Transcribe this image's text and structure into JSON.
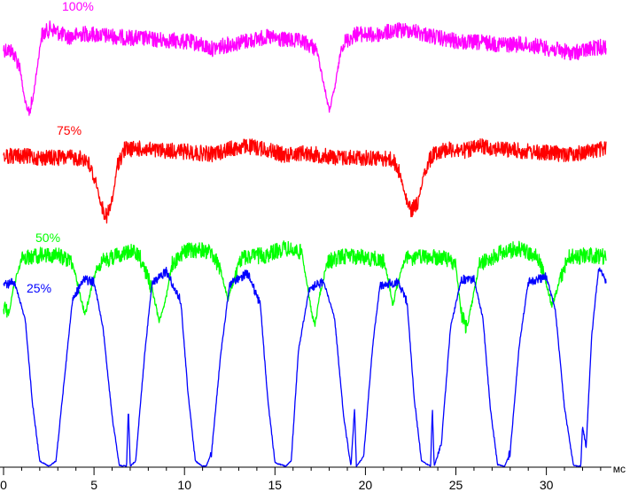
{
  "chart_data": {
    "type": "line",
    "title": "",
    "xlabel": "",
    "ylabel": "",
    "x_unit": "мс",
    "xlim": [
      0,
      33.3
    ],
    "xticks": [
      0,
      5,
      10,
      15,
      20,
      25,
      30
    ],
    "grid": false,
    "legend": "none",
    "series": [
      {
        "name": "100%",
        "color": "#ff00ff",
        "baseline": 48,
        "noise_band": "medium",
        "points": [
          [
            0.0,
            55
          ],
          [
            0.5,
            58
          ],
          [
            0.9,
            75
          ],
          [
            1.1,
            105
          ],
          [
            1.35,
            128
          ],
          [
            1.6,
            115
          ],
          [
            1.9,
            70
          ],
          [
            2.1,
            40
          ],
          [
            2.6,
            32
          ],
          [
            3.5,
            42
          ],
          [
            4.5,
            38
          ],
          [
            5.5,
            40
          ],
          [
            6.5,
            42
          ],
          [
            7.5,
            43
          ],
          [
            8.5,
            45
          ],
          [
            9.5,
            46
          ],
          [
            10.5,
            48
          ],
          [
            11.5,
            55
          ],
          [
            12.5,
            50
          ],
          [
            13.5,
            46
          ],
          [
            14.5,
            42
          ],
          [
            15.5,
            45
          ],
          [
            16.5,
            47
          ],
          [
            17.3,
            55
          ],
          [
            17.7,
            95
          ],
          [
            18.0,
            125
          ],
          [
            18.3,
            100
          ],
          [
            18.7,
            50
          ],
          [
            19.5,
            38
          ],
          [
            20.5,
            40
          ],
          [
            21.5,
            35
          ],
          [
            22.5,
            34
          ],
          [
            23.5,
            40
          ],
          [
            24.5,
            45
          ],
          [
            25.5,
            48
          ],
          [
            26.5,
            48
          ],
          [
            27.5,
            50
          ],
          [
            28.5,
            50
          ],
          [
            29.5,
            52
          ],
          [
            30.5,
            56
          ],
          [
            31.5,
            60
          ],
          [
            32.5,
            55
          ],
          [
            33.3,
            52
          ]
        ]
      },
      {
        "name": "75%",
        "color": "#ff0000",
        "baseline": 175,
        "noise_band": "medium",
        "points": [
          [
            0.0,
            176
          ],
          [
            1.0,
            176
          ],
          [
            2.0,
            178
          ],
          [
            3.0,
            178
          ],
          [
            4.0,
            178
          ],
          [
            4.6,
            180
          ],
          [
            5.1,
            205
          ],
          [
            5.4,
            232
          ],
          [
            5.7,
            245
          ],
          [
            6.0,
            228
          ],
          [
            6.3,
            185
          ],
          [
            6.7,
            168
          ],
          [
            7.5,
            168
          ],
          [
            8.5,
            170
          ],
          [
            9.5,
            170
          ],
          [
            10.5,
            172
          ],
          [
            11.5,
            174
          ],
          [
            12.5,
            168
          ],
          [
            13.5,
            165
          ],
          [
            14.5,
            168
          ],
          [
            15.5,
            175
          ],
          [
            16.5,
            172
          ],
          [
            17.5,
            175
          ],
          [
            18.5,
            178
          ],
          [
            19.5,
            178
          ],
          [
            20.5,
            178
          ],
          [
            21.5,
            180
          ],
          [
            21.9,
            195
          ],
          [
            22.2,
            222
          ],
          [
            22.5,
            238
          ],
          [
            22.9,
            228
          ],
          [
            23.3,
            190
          ],
          [
            23.8,
            172
          ],
          [
            24.5,
            168
          ],
          [
            25.5,
            170
          ],
          [
            26.5,
            165
          ],
          [
            27.5,
            168
          ],
          [
            28.5,
            170
          ],
          [
            29.5,
            172
          ],
          [
            30.5,
            173
          ],
          [
            31.5,
            174
          ],
          [
            32.5,
            170
          ],
          [
            33.3,
            168
          ]
        ]
      },
      {
        "name": "50%",
        "color": "#00ff00",
        "baseline": 290,
        "noise_band": "medium",
        "points": [
          [
            0.0,
            345
          ],
          [
            0.3,
            352
          ],
          [
            0.6,
            320
          ],
          [
            1.0,
            292
          ],
          [
            2.0,
            288
          ],
          [
            3.0,
            288
          ],
          [
            3.8,
            295
          ],
          [
            4.2,
            330
          ],
          [
            4.5,
            355
          ],
          [
            4.8,
            330
          ],
          [
            5.2,
            298
          ],
          [
            6.0,
            290
          ],
          [
            7.0,
            283
          ],
          [
            7.5,
            288
          ],
          [
            8.2,
            325
          ],
          [
            8.6,
            362
          ],
          [
            9.0,
            335
          ],
          [
            9.3,
            298
          ],
          [
            10.0,
            283
          ],
          [
            11.0,
            282
          ],
          [
            11.5,
            285
          ],
          [
            12.0,
            305
          ],
          [
            12.4,
            338
          ],
          [
            12.8,
            312
          ],
          [
            13.2,
            290
          ],
          [
            14.5,
            288
          ],
          [
            15.5,
            280
          ],
          [
            16.5,
            285
          ],
          [
            17.0,
            350
          ],
          [
            17.2,
            368
          ],
          [
            17.5,
            330
          ],
          [
            17.9,
            295
          ],
          [
            19.0,
            288
          ],
          [
            20.5,
            292
          ],
          [
            21.0,
            295
          ],
          [
            21.3,
            318
          ],
          [
            21.5,
            345
          ],
          [
            21.8,
            318
          ],
          [
            22.2,
            292
          ],
          [
            23.5,
            290
          ],
          [
            24.5,
            292
          ],
          [
            25.0,
            300
          ],
          [
            25.3,
            355
          ],
          [
            25.6,
            370
          ],
          [
            25.9,
            340
          ],
          [
            26.3,
            298
          ],
          [
            27.5,
            285
          ],
          [
            28.5,
            280
          ],
          [
            29.5,
            290
          ],
          [
            29.9,
            312
          ],
          [
            30.3,
            345
          ],
          [
            30.7,
            320
          ],
          [
            31.2,
            290
          ],
          [
            32.5,
            288
          ],
          [
            33.3,
            290
          ]
        ]
      },
      {
        "name": "25%",
        "color": "#0000ff",
        "baseline": 320,
        "noise_band": "small",
        "points": [
          [
            0.0,
            322
          ],
          [
            0.6,
            318
          ],
          [
            1.2,
            360
          ],
          [
            1.6,
            455
          ],
          [
            2.0,
            520
          ],
          [
            2.5,
            526
          ],
          [
            2.9,
            520
          ],
          [
            3.4,
            420
          ],
          [
            3.8,
            340
          ],
          [
            4.4,
            315
          ],
          [
            5.0,
            318
          ],
          [
            5.5,
            370
          ],
          [
            6.0,
            470
          ],
          [
            6.4,
            525
          ],
          [
            6.8,
            526
          ],
          [
            6.9,
            460
          ],
          [
            7.0,
            526
          ],
          [
            7.3,
            520
          ],
          [
            7.8,
            400
          ],
          [
            8.2,
            320
          ],
          [
            9.0,
            306
          ],
          [
            9.8,
            340
          ],
          [
            10.2,
            445
          ],
          [
            10.6,
            520
          ],
          [
            11.0,
            526
          ],
          [
            11.2,
            526
          ],
          [
            11.5,
            510
          ],
          [
            12.0,
            400
          ],
          [
            12.5,
            320
          ],
          [
            13.5,
            308
          ],
          [
            14.2,
            345
          ],
          [
            14.6,
            450
          ],
          [
            15.0,
            522
          ],
          [
            15.6,
            526
          ],
          [
            15.9,
            520
          ],
          [
            16.3,
            395
          ],
          [
            16.9,
            325
          ],
          [
            17.7,
            318
          ],
          [
            18.3,
            360
          ],
          [
            18.8,
            470
          ],
          [
            19.2,
            526
          ],
          [
            19.4,
            460
          ],
          [
            19.5,
            526
          ],
          [
            19.9,
            515
          ],
          [
            20.4,
            390
          ],
          [
            20.8,
            322
          ],
          [
            21.8,
            318
          ],
          [
            22.3,
            340
          ],
          [
            22.7,
            450
          ],
          [
            23.1,
            520
          ],
          [
            23.6,
            526
          ],
          [
            23.7,
            460
          ],
          [
            23.8,
            526
          ],
          [
            24.2,
            500
          ],
          [
            24.7,
            370
          ],
          [
            25.3,
            315
          ],
          [
            26.0,
            315
          ],
          [
            26.5,
            360
          ],
          [
            26.9,
            460
          ],
          [
            27.3,
            524
          ],
          [
            27.7,
            526
          ],
          [
            28.0,
            510
          ],
          [
            28.5,
            390
          ],
          [
            29.0,
            318
          ],
          [
            30.0,
            312
          ],
          [
            30.5,
            350
          ],
          [
            31.0,
            460
          ],
          [
            31.5,
            525
          ],
          [
            31.9,
            526
          ],
          [
            32.0,
            480
          ],
          [
            32.2,
            505
          ],
          [
            32.5,
            380
          ],
          [
            32.9,
            300
          ],
          [
            33.3,
            318
          ]
        ]
      }
    ]
  }
}
